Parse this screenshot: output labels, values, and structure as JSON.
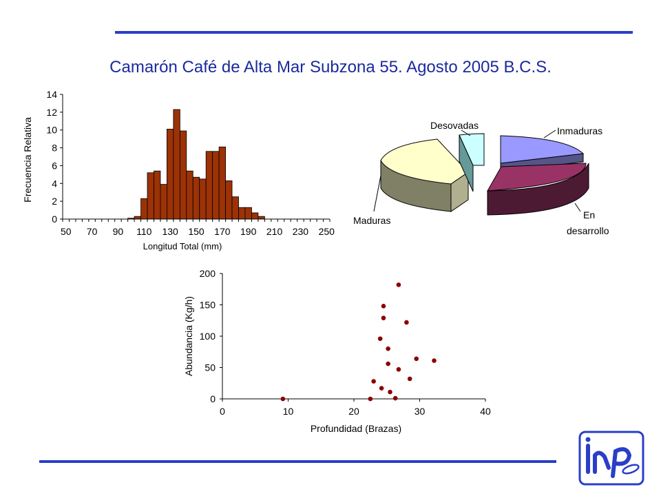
{
  "title": "Camarón Café de Alta Mar Subzona 55. Agosto 2005 B.C.S.",
  "colors": {
    "rule": "#2a3ec8",
    "title": "#1a2a9e",
    "bar": "#9c3206",
    "point": "#8b0000"
  },
  "logo": {
    "icon": "inp-logo"
  },
  "chart_data": [
    {
      "type": "bar",
      "ylabel": "Frecuencia Relativa",
      "xlabel": "Longitud Total (mm)",
      "ylim": [
        0,
        14
      ],
      "yticks": [
        "0",
        "2",
        "4",
        "6",
        "8",
        "10",
        "12",
        "14"
      ],
      "xticks": [
        "50",
        "70",
        "90",
        "110",
        "130",
        "150",
        "170",
        "190",
        "210",
        "230",
        "250"
      ],
      "categories": [
        50,
        55,
        60,
        65,
        70,
        75,
        80,
        85,
        90,
        95,
        100,
        105,
        110,
        115,
        120,
        125,
        130,
        135,
        140,
        145,
        150,
        155,
        160,
        165,
        170,
        175,
        180,
        185,
        190,
        195,
        200,
        205,
        210,
        215,
        220,
        225,
        230,
        235,
        240,
        245,
        250
      ],
      "values": [
        0,
        0,
        0,
        0,
        0,
        0,
        0,
        0,
        0,
        0,
        0.1,
        0.3,
        2.3,
        5.2,
        5.4,
        3.9,
        10.1,
        12.3,
        9.9,
        5.4,
        4.7,
        4.5,
        7.6,
        7.6,
        8.1,
        4.3,
        2.5,
        1.3,
        1.3,
        0.7,
        0.3,
        0,
        0,
        0,
        0,
        0,
        0,
        0,
        0,
        0,
        0
      ]
    },
    {
      "type": "pie",
      "labels": [
        "Inmaduras",
        "En desarrollo",
        "Maduras",
        "Desovadas"
      ],
      "values": [
        22,
        33,
        38,
        7
      ],
      "colors": [
        "#9999ff",
        "#993366",
        "#ffffcc",
        "#ccffff"
      ]
    },
    {
      "type": "scatter",
      "xlabel": "Profundidad (Brazas)",
      "ylabel": "Abundancia  (Kg/h)",
      "xlim": [
        0,
        40
      ],
      "ylim": [
        0,
        200
      ],
      "xticks": [
        "0",
        "10",
        "20",
        "30",
        "40"
      ],
      "yticks": [
        "0",
        "50",
        "100",
        "150",
        "200"
      ],
      "points": [
        [
          9.2,
          0
        ],
        [
          22.5,
          0
        ],
        [
          23,
          28
        ],
        [
          24,
          96
        ],
        [
          24.2,
          17
        ],
        [
          24.5,
          148
        ],
        [
          24.5,
          129
        ],
        [
          25.2,
          80
        ],
        [
          25.2,
          56
        ],
        [
          25.5,
          11
        ],
        [
          26.3,
          1
        ],
        [
          26.8,
          182
        ],
        [
          26.8,
          47
        ],
        [
          28,
          122
        ],
        [
          28.5,
          32
        ],
        [
          29.5,
          64
        ],
        [
          32.2,
          61
        ]
      ]
    }
  ]
}
